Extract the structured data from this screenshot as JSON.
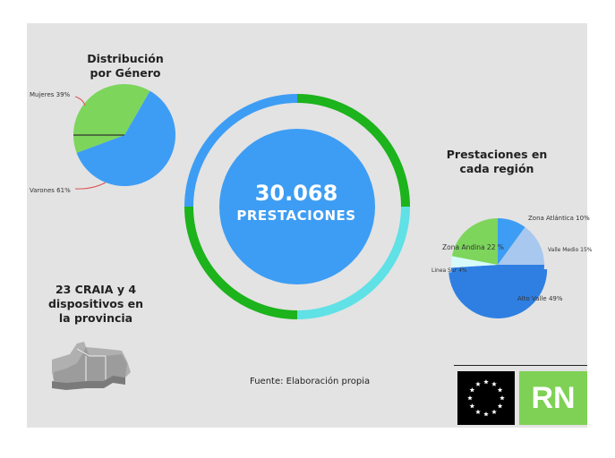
{
  "total": {
    "number": "30.068",
    "label": "PRESTACIONES"
  },
  "source_text": "Fuente: Elaboración propia",
  "provinces_text": [
    "23 CRAIA y 4",
    "dispositivos en",
    "la provincia"
  ],
  "logo": {
    "text": "RN",
    "rn_color": "#7fd155"
  },
  "colors": {
    "ring_blue": "#3d9df4",
    "ring_green": "#1cb31c",
    "ring_cyan": "#5fe1e6",
    "center_blue": "#3d9df4"
  },
  "chart_data": [
    {
      "type": "pie",
      "title_lines": [
        "Distribución",
        "por Género"
      ],
      "slices": [
        {
          "label": "Mujeres 39%",
          "value": 39,
          "color": "#7dd55c"
        },
        {
          "label": "Varones 61%",
          "value": 61,
          "color": "#3d9df4"
        }
      ]
    },
    {
      "type": "pie",
      "title_lines": [
        "Prestaciones en",
        "cada región"
      ],
      "slices": [
        {
          "label": "Zona Atlántica 10%",
          "value": 10,
          "color": "#3d9df4"
        },
        {
          "label": "Valle Medio 15%",
          "value": 15,
          "color": "#a9c8ef"
        },
        {
          "label": "Alto Valle 49%",
          "value": 49,
          "color": "#2f7fe3"
        },
        {
          "label": "Linea Sur 4%",
          "value": 4,
          "color": "#d7fbfb"
        },
        {
          "label": "Zona Andina 22 %",
          "value": 22,
          "color": "#7dd55c"
        }
      ]
    }
  ]
}
